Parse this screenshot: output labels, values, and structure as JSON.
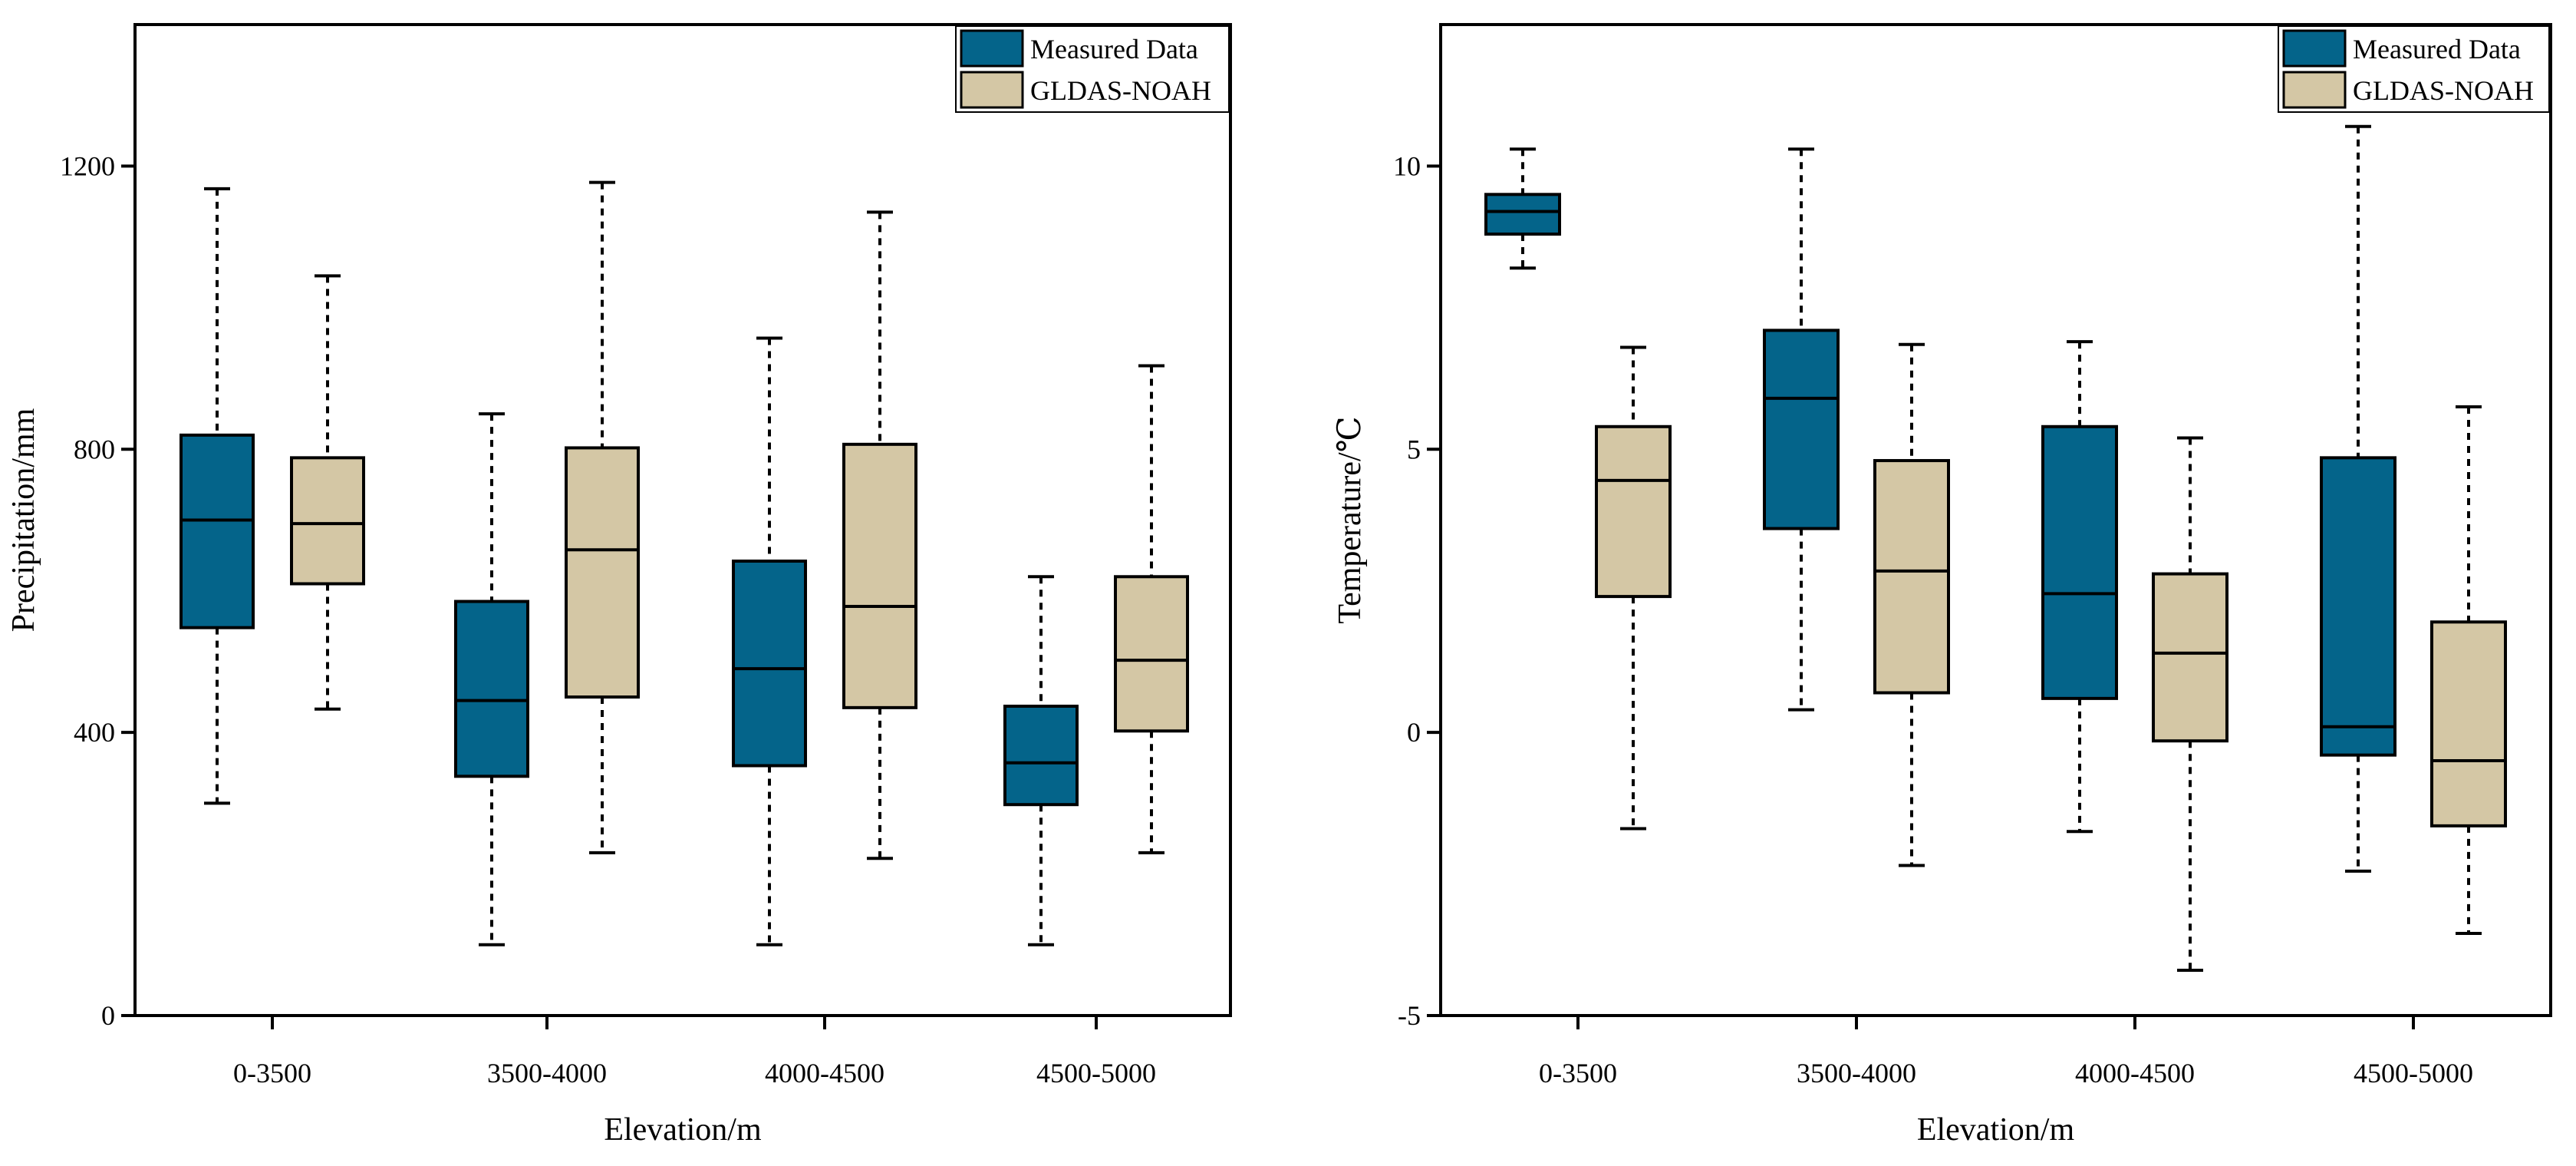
{
  "chart_data": [
    {
      "type": "boxplot",
      "title": "",
      "xlabel": "Elevation/m",
      "ylabel": "Precipitation/mm",
      "ylim": [
        0,
        1400
      ],
      "yticks": [
        0,
        400,
        800,
        1200
      ],
      "categories": [
        "0-3500",
        "3500-4000",
        "4000-4500",
        "4500-5000"
      ],
      "legend_position": "top-right",
      "series": [
        {
          "name": "Measured Data",
          "color": "#04648A",
          "boxes": [
            {
              "min": 300,
              "q1": 548,
              "median": 700,
              "q3": 820,
              "max": 1168
            },
            {
              "min": 100,
              "q1": 338,
              "median": 445,
              "q3": 585,
              "max": 850
            },
            {
              "min": 100,
              "q1": 353,
              "median": 490,
              "q3": 642,
              "max": 957
            },
            {
              "min": 100,
              "q1": 298,
              "median": 357,
              "q3": 437,
              "max": 620
            }
          ]
        },
        {
          "name": "GLDAS-NOAH",
          "color": "#D4C7A5",
          "boxes": [
            {
              "min": 433,
              "q1": 610,
              "median": 695,
              "q3": 788,
              "max": 1045
            },
            {
              "min": 230,
              "q1": 450,
              "median": 658,
              "q3": 802,
              "max": 1177
            },
            {
              "min": 222,
              "q1": 435,
              "median": 578,
              "q3": 807,
              "max": 1135
            },
            {
              "min": 230,
              "q1": 402,
              "median": 502,
              "q3": 620,
              "max": 918
            }
          ]
        }
      ]
    },
    {
      "type": "boxplot",
      "title": "",
      "xlabel": "Elevation/m",
      "ylabel": "Temperature/℃",
      "ylim": [
        -5,
        12.5
      ],
      "yticks": [
        -5,
        0,
        5,
        10
      ],
      "categories": [
        "0-3500",
        "3500-4000",
        "4000-4500",
        "4500-5000"
      ],
      "legend_position": "top-right",
      "series": [
        {
          "name": "Measured Data",
          "color": "#04648A",
          "boxes": [
            {
              "min": 8.2,
              "q1": 8.8,
              "median": 9.2,
              "q3": 9.5,
              "max": 10.3
            },
            {
              "min": 0.4,
              "q1": 3.6,
              "median": 5.9,
              "q3": 7.1,
              "max": 10.3
            },
            {
              "min": -1.75,
              "q1": 0.6,
              "median": 2.45,
              "q3": 5.4,
              "max": 6.9
            },
            {
              "min": -2.45,
              "q1": -0.4,
              "median": 0.1,
              "q3": 4.85,
              "max": 10.7
            }
          ]
        },
        {
          "name": "GLDAS-NOAH",
          "color": "#D4C7A5",
          "boxes": [
            {
              "min": -1.7,
              "q1": 2.4,
              "median": 4.45,
              "q3": 5.4,
              "max": 6.8
            },
            {
              "min": -2.35,
              "q1": 0.7,
              "median": 2.85,
              "q3": 4.8,
              "max": 6.85
            },
            {
              "min": -4.2,
              "q1": -0.15,
              "median": 1.4,
              "q3": 2.8,
              "max": 5.2
            },
            {
              "min": -3.55,
              "q1": -1.65,
              "median": -0.5,
              "q3": 1.95,
              "max": 5.75
            }
          ]
        }
      ]
    }
  ]
}
